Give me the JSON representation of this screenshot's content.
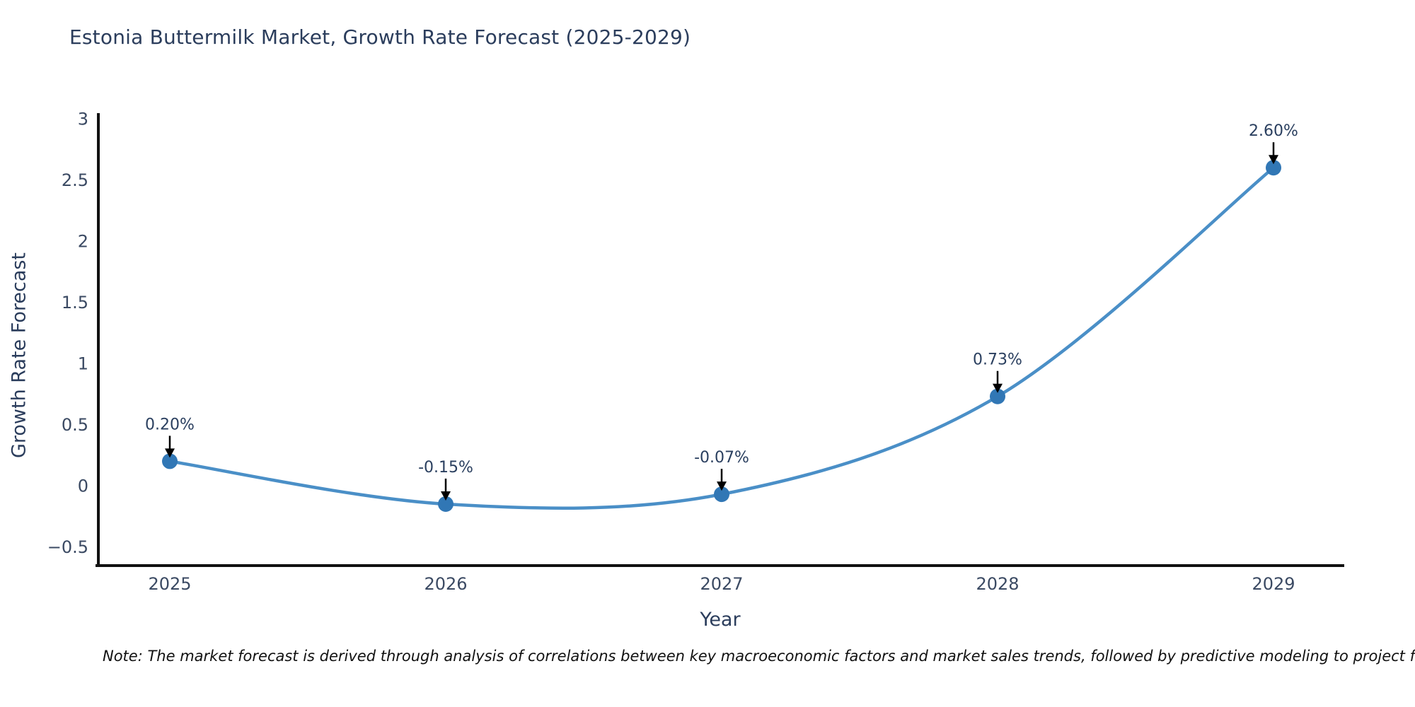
{
  "title": "Estonia Buttermilk Market, Growth Rate Forecast (2025-2029)",
  "note": "Note: The market forecast is derived through analysis of correlations between key macroeconomic factors and market sales trends, followed by predictive modeling to project future sa",
  "chart_data": {
    "type": "line",
    "title": "Estonia Buttermilk Market, Growth Rate Forecast (2025-2029)",
    "x": [
      "2025",
      "2026",
      "2027",
      "2028",
      "2029"
    ],
    "y": [
      0.2,
      -0.15,
      -0.07,
      0.73,
      2.6
    ],
    "point_labels": [
      "0.20%",
      "-0.15%",
      "-0.07%",
      "0.73%",
      "2.60%"
    ],
    "xlabel": "Year",
    "ylabel": "Growth Rate Forecast",
    "ylim": [
      -0.5,
      3
    ],
    "ytick_values": [
      3,
      2.5,
      2,
      1.5,
      1,
      0.5,
      0,
      -0.5
    ],
    "ytick_labels": [
      "3",
      "2.5",
      "2",
      "1.5",
      "1",
      "0.5",
      "0",
      "−0.5"
    ],
    "line_shape": "spline",
    "grid": false,
    "legend": "none",
    "colors": {
      "line": "#4a8fc7",
      "marker": "#3177b5",
      "axis_line": "#111111",
      "tick_text": "#3b4a63",
      "title_text": "#2b3d5c",
      "annotation_text": "#2a3f5f",
      "annotation_arrow": "#000000",
      "background": "#ffffff"
    }
  }
}
